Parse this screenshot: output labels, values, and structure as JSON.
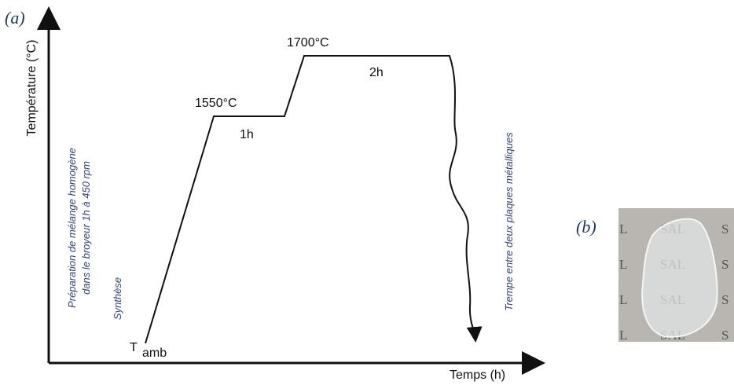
{
  "panel_a": {
    "label": "(a)",
    "y_axis_label": "Température (°C)",
    "x_axis_label": "Temps (h)",
    "steps": [
      {
        "temperature": "1550°C",
        "duration": "1h"
      },
      {
        "temperature": "1700°C",
        "duration": "2h"
      }
    ],
    "start": {
      "symbol": "T",
      "subscript": "amb"
    },
    "stage": "Synthèse",
    "preparation": [
      "Préparation de mélange homogène",
      "dans le broyeur 1h à 450 rpm"
    ],
    "quench": "Trempe entre deux plaques métalliques"
  },
  "panel_b": {
    "label": "(b)",
    "background_text": [
      [
        "L",
        "SAL",
        "S"
      ],
      [
        "L",
        "SAL",
        "S"
      ],
      [
        "L",
        "SAL",
        "S"
      ],
      [
        "L",
        "SAL",
        "S"
      ]
    ]
  }
}
